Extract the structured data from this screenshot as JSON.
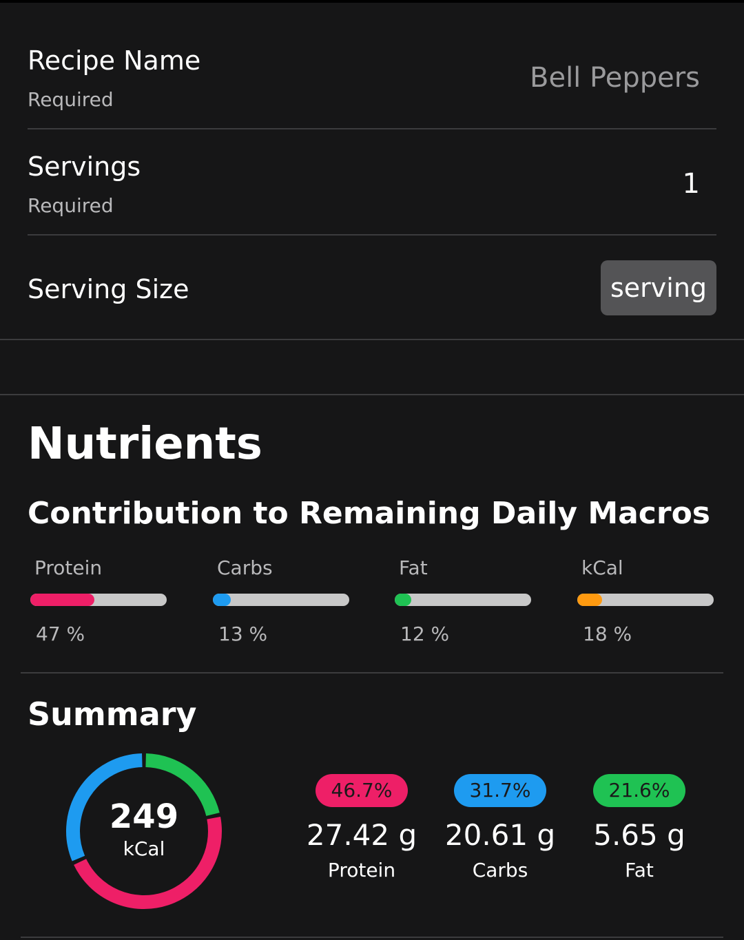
{
  "form": {
    "recipe_name": {
      "label": "Recipe Name",
      "sub": "Required",
      "value": "Bell Peppers"
    },
    "servings": {
      "label": "Servings",
      "sub": "Required",
      "value": "1"
    },
    "serving_size": {
      "label": "Serving Size",
      "value": "serving"
    }
  },
  "nutrients": {
    "title": "Nutrients",
    "contribution_title": "Contribution to Remaining Daily Macros",
    "macros": [
      {
        "label": "Protein",
        "pct_text": "47 %",
        "fraction": 0.47,
        "color": "#ee1f67"
      },
      {
        "label": "Carbs",
        "pct_text": "13 %",
        "fraction": 0.13,
        "color": "#1e9bf0"
      },
      {
        "label": "Fat",
        "pct_text": "12 %",
        "fraction": 0.12,
        "color": "#1fc253"
      },
      {
        "label": "kCal",
        "pct_text": "18 %",
        "fraction": 0.18,
        "color": "#ff9a10"
      }
    ]
  },
  "summary": {
    "title": "Summary",
    "kcal_value": "249",
    "kcal_unit": "kCal",
    "stats": [
      {
        "pct": "46.7%",
        "fraction": 0.467,
        "value": "27.42 g",
        "label": "Protein",
        "color": "#ee1f67"
      },
      {
        "pct": "31.7%",
        "fraction": 0.317,
        "value": "20.61 g",
        "label": "Carbs",
        "color": "#1e9bf0"
      },
      {
        "pct": "21.6%",
        "fraction": 0.216,
        "value": "5.65 g",
        "label": "Fat",
        "color": "#1fc253"
      }
    ]
  }
}
